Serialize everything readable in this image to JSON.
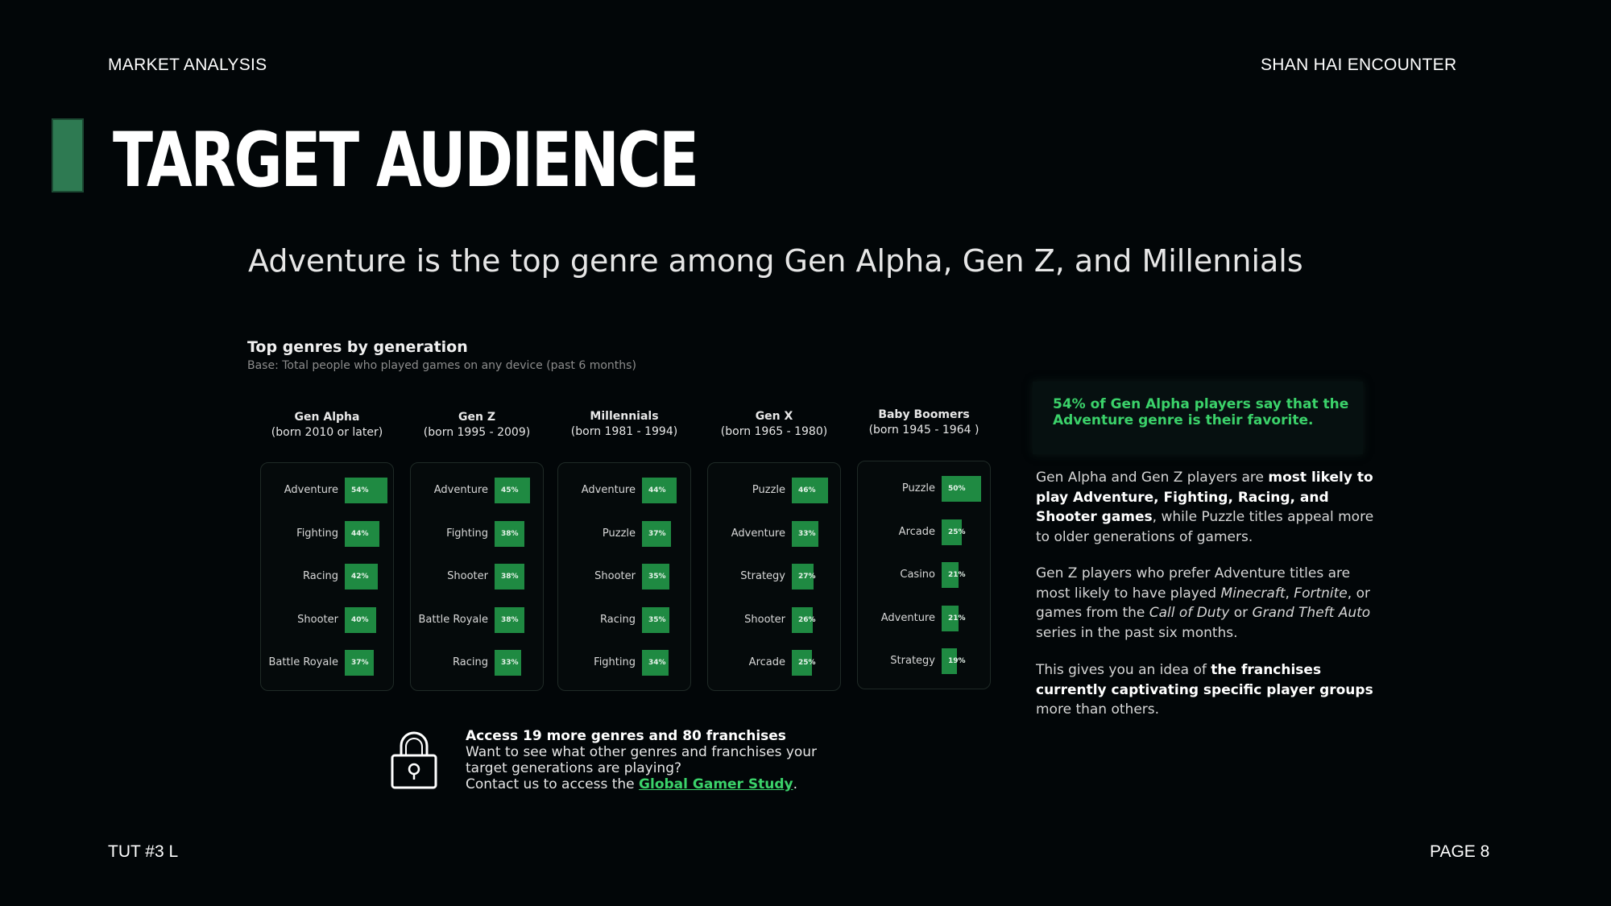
{
  "header": {
    "left": "MARKET ANALYSIS",
    "right": "SHAN HAI ENCOUNTER"
  },
  "title": "TARGET AUDIENCE",
  "subtitle": "Adventure is the top genre among Gen Alpha, Gen Z, and Millennials",
  "chart_data": {
    "type": "bar",
    "title": "Top genres by generation",
    "subtitle": "Base: Total people who played games on any device (past 6 months)",
    "unit": "%",
    "series": [
      {
        "name": "Gen Alpha",
        "born": "(born 2010 or later)",
        "categories": [
          "Adventure",
          "Fighting",
          "Racing",
          "Shooter",
          "Battle Royale"
        ],
        "values": [
          54,
          44,
          42,
          40,
          37
        ],
        "labels": [
          "54%",
          "44%",
          "42%",
          "40%",
          "37%"
        ]
      },
      {
        "name": "Gen Z",
        "born": "(born 1995 - 2009)",
        "categories": [
          "Adventure",
          "Fighting",
          "Shooter",
          "Battle Royale",
          "Racing"
        ],
        "values": [
          45,
          38,
          38,
          38,
          33
        ],
        "labels": [
          "45%",
          "38%",
          "38%",
          "38%",
          "33%"
        ]
      },
      {
        "name": "Millennials",
        "born": "(born 1981 - 1994)",
        "categories": [
          "Adventure",
          "Puzzle",
          "Shooter",
          "Racing",
          "Fighting"
        ],
        "values": [
          44,
          37,
          35,
          35,
          34
        ],
        "labels": [
          "44%",
          "37%",
          "35%",
          "35%",
          "34%"
        ]
      },
      {
        "name": "Gen X",
        "born": "(born 1965 - 1980)",
        "categories": [
          "Puzzle",
          "Adventure",
          "Strategy",
          "Shooter",
          "Arcade"
        ],
        "values": [
          46,
          33,
          27,
          26,
          25
        ],
        "labels": [
          "46%",
          "33%",
          "27%",
          "26%",
          "25%"
        ]
      },
      {
        "name": "Baby Boomers",
        "born": "(born 1945 - 1964 )",
        "categories": [
          "Puzzle",
          "Arcade",
          "Casino",
          "Adventure",
          "Strategy"
        ],
        "values": [
          50,
          25,
          21,
          21,
          19
        ],
        "labels": [
          "50%",
          "25%",
          "21%",
          "21%",
          "19%"
        ]
      }
    ]
  },
  "callout": "54% of Gen Alpha players say that the Adventure genre is their favorite.",
  "paragraphs": {
    "p1": {
      "a": "Gen Alpha and Gen Z players are ",
      "b": "most likely to play Adventure, Fighting, Racing, and Shooter games",
      "c": ", while Puzzle titles appeal more to older generations of gamers."
    },
    "p2": {
      "a": "Gen Z players who prefer Adventure titles are most likely to have played ",
      "minecraft": "Minecraft",
      "sep1": ", ",
      "fortnite": "Fortnite",
      "b": ", or games from the ",
      "cod": "Call of Duty",
      "or": " or ",
      "gta": "Grand Theft Auto",
      "c": " series in the past six months."
    },
    "p3": {
      "a": "This gives you an idea of ",
      "b": "the franchises currently captivating specific player groups",
      "c": " more than others."
    }
  },
  "access": {
    "heading": "Access 19 more genres and 80 franchises",
    "line1": "Want to see what other genres and franchises your target generations are playing?",
    "line2": "Contact us to access the ",
    "link": "Global Gamer Study",
    "end": "."
  },
  "footer": {
    "left": "TUT #3 L",
    "right": "PAGE 8"
  },
  "colors": {
    "accent": "#1f8a42",
    "highlight": "#3bd26a",
    "background": "#020608"
  }
}
